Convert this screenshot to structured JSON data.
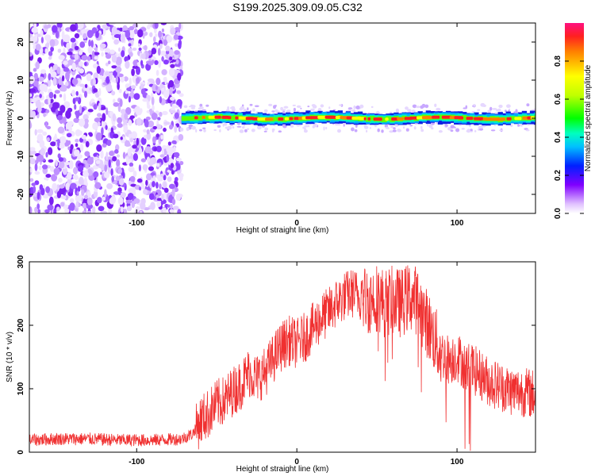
{
  "title": "S199.2025.309.09.05.C32",
  "chart_data": [
    {
      "id": "spectrogram",
      "type": "heatmap",
      "xlabel": "Height of straight line (km)",
      "ylabel": "Frequency (Hz)",
      "xlim": [
        -167,
        149
      ],
      "ylim": [
        -25,
        25
      ],
      "xticks": [
        -100,
        0,
        100
      ],
      "yticks": [
        -20,
        -10,
        0,
        10,
        20
      ],
      "noise_region_x": [
        -167,
        -72
      ],
      "signal_band": {
        "x_start": -72,
        "x_end": 149,
        "center_hz": 0,
        "halfwidth_hz": 1.5
      },
      "colorbar": {
        "label": "Normalized spectral amplitude",
        "range": [
          0,
          1
        ],
        "ticks": [
          0.0,
          0.2,
          0.4,
          0.6,
          0.8
        ],
        "tick_labels": [
          "0.0",
          "0.2",
          "0.4",
          "0.6",
          "0.8"
        ]
      }
    },
    {
      "id": "snr",
      "type": "line",
      "xlabel": "Height of straight line (km)",
      "ylabel": "SNR (10 * v/v)",
      "xlim": [
        -167,
        149
      ],
      "ylim": [
        0,
        300
      ],
      "xticks": [
        -100,
        0,
        100
      ],
      "yticks": [
        0,
        100,
        200,
        300
      ],
      "grid": false,
      "color": "#f03030",
      "series": [
        {
          "x": [
            -167,
            -150,
            -130,
            -110,
            -90,
            -72,
            -65,
            -60,
            -55,
            -50,
            -45,
            -40,
            -35,
            -30,
            -25,
            -20,
            -15,
            -10,
            -5,
            0,
            5,
            10,
            15,
            20,
            25,
            30,
            35,
            40,
            45,
            50,
            55,
            60,
            65,
            70,
            75,
            80,
            85,
            90,
            95,
            100,
            105,
            110,
            115,
            120,
            125,
            130,
            135,
            140,
            149
          ],
          "y": [
            20,
            22,
            22,
            20,
            20,
            22,
            30,
            55,
            65,
            80,
            85,
            100,
            110,
            130,
            120,
            130,
            150,
            170,
            180,
            175,
            185,
            200,
            215,
            225,
            240,
            250,
            255,
            250,
            245,
            250,
            240,
            245,
            240,
            250,
            245,
            215,
            190,
            160,
            150,
            155,
            140,
            135,
            125,
            115,
            110,
            105,
            100,
            100,
            95
          ]
        }
      ]
    }
  ]
}
